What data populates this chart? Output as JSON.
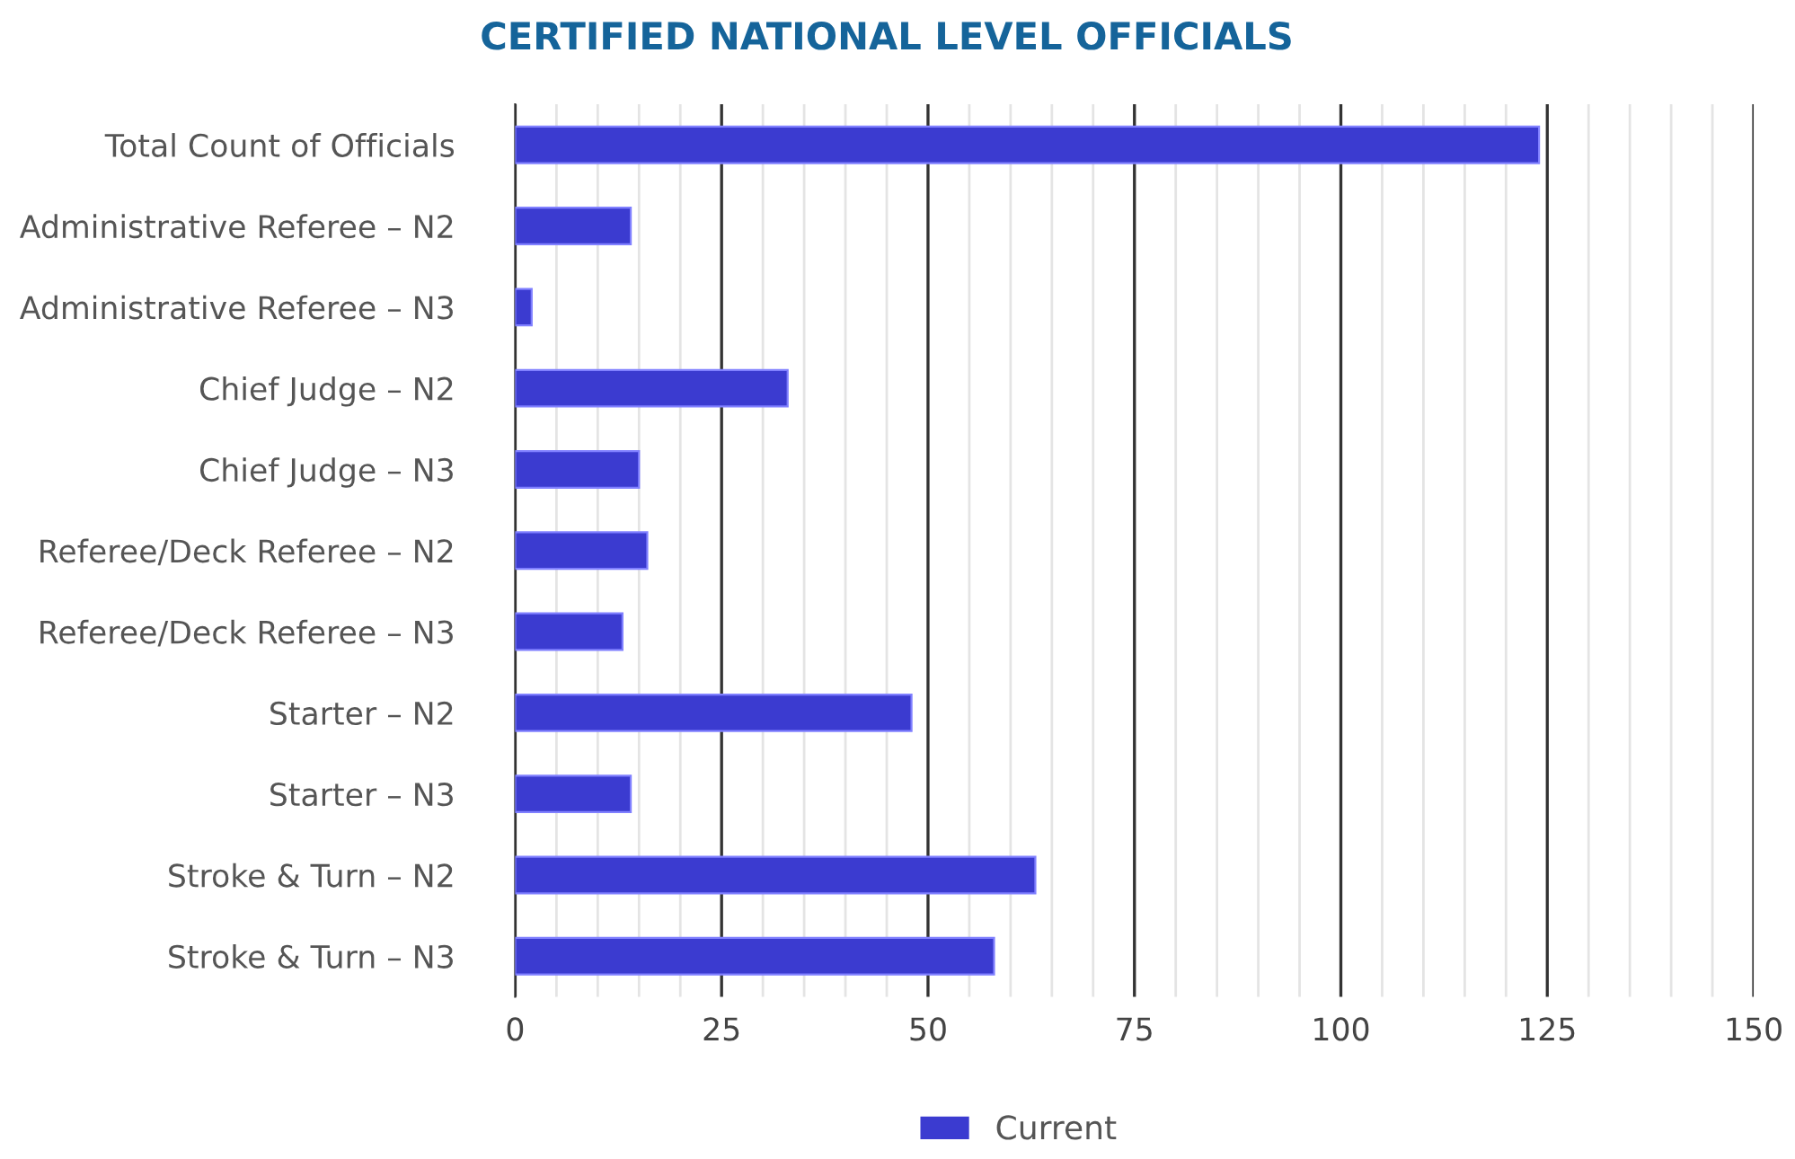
{
  "chart_data": {
    "type": "bar",
    "orientation": "horizontal",
    "title": "CERTIFIED NATIONAL LEVEL OFFICIALS",
    "categories": [
      "Total Count of Officials",
      "Administrative Referee – N2",
      "Administrative Referee – N3",
      "Chief Judge – N2",
      "Chief Judge – N3",
      "Referee/Deck Referee – N2",
      "Referee/Deck Referee – N3",
      "Starter – N2",
      "Starter – N3",
      "Stroke & Turn – N2",
      "Stroke & Turn – N3"
    ],
    "series": [
      {
        "name": "Current",
        "color": "#3b3bd0",
        "values": [
          124,
          14,
          2,
          33,
          15,
          16,
          13,
          48,
          14,
          63,
          58
        ]
      }
    ],
    "xlim": [
      0,
      150
    ],
    "xticks": [
      0,
      {
        "value": 5,
        "label": null
      },
      {
        "value": 10,
        "label": null
      },
      {
        "value": 15,
        "label": null
      },
      {
        "value": 20,
        "label": null
      },
      25,
      {
        "value": 30,
        "label": null
      },
      {
        "value": 35,
        "label": null
      },
      {
        "value": 40,
        "label": null
      },
      {
        "value": 45,
        "label": null
      },
      50,
      {
        "value": 55,
        "label": null
      },
      {
        "value": 60,
        "label": null
      },
      {
        "value": 65,
        "label": null
      },
      {
        "value": 70,
        "label": null
      },
      75,
      {
        "value": 80,
        "label": null
      },
      {
        "value": 85,
        "label": null
      },
      {
        "value": 90,
        "label": null
      },
      {
        "value": 95,
        "label": null
      },
      100,
      {
        "value": 105,
        "label": null
      },
      {
        "value": 110,
        "label": null
      },
      {
        "value": 115,
        "label": null
      },
      {
        "value": 120,
        "label": null
      },
      125,
      {
        "value": 130,
        "label": null
      },
      {
        "value": 135,
        "label": null
      },
      {
        "value": 140,
        "label": null
      },
      {
        "value": 145,
        "label": null
      },
      150
    ],
    "grid": "x",
    "legend": "bottom"
  }
}
